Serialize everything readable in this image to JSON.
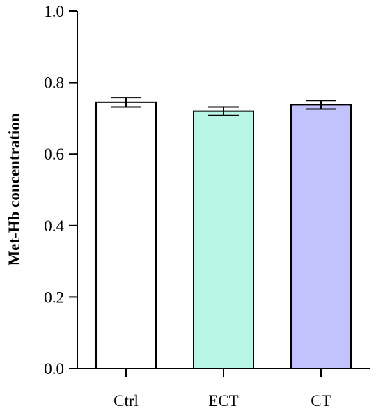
{
  "chart_data": {
    "type": "bar",
    "title": "",
    "xlabel": "",
    "ylabel": "Met-Hb concentration",
    "ylim": [
      0.0,
      1.0
    ],
    "yticks": [
      "0.0",
      "0.2",
      "0.4",
      "0.6",
      "0.8",
      "1.0"
    ],
    "categories": [
      "Ctrl",
      "ECT",
      "CT"
    ],
    "values": [
      0.745,
      0.72,
      0.738
    ],
    "errors": [
      0.013,
      0.012,
      0.012
    ],
    "colors": [
      "#ffffff",
      "#b8f5e5",
      "#c2c2ff"
    ],
    "edge_color": "#000000",
    "grid": false,
    "legend": "none"
  }
}
